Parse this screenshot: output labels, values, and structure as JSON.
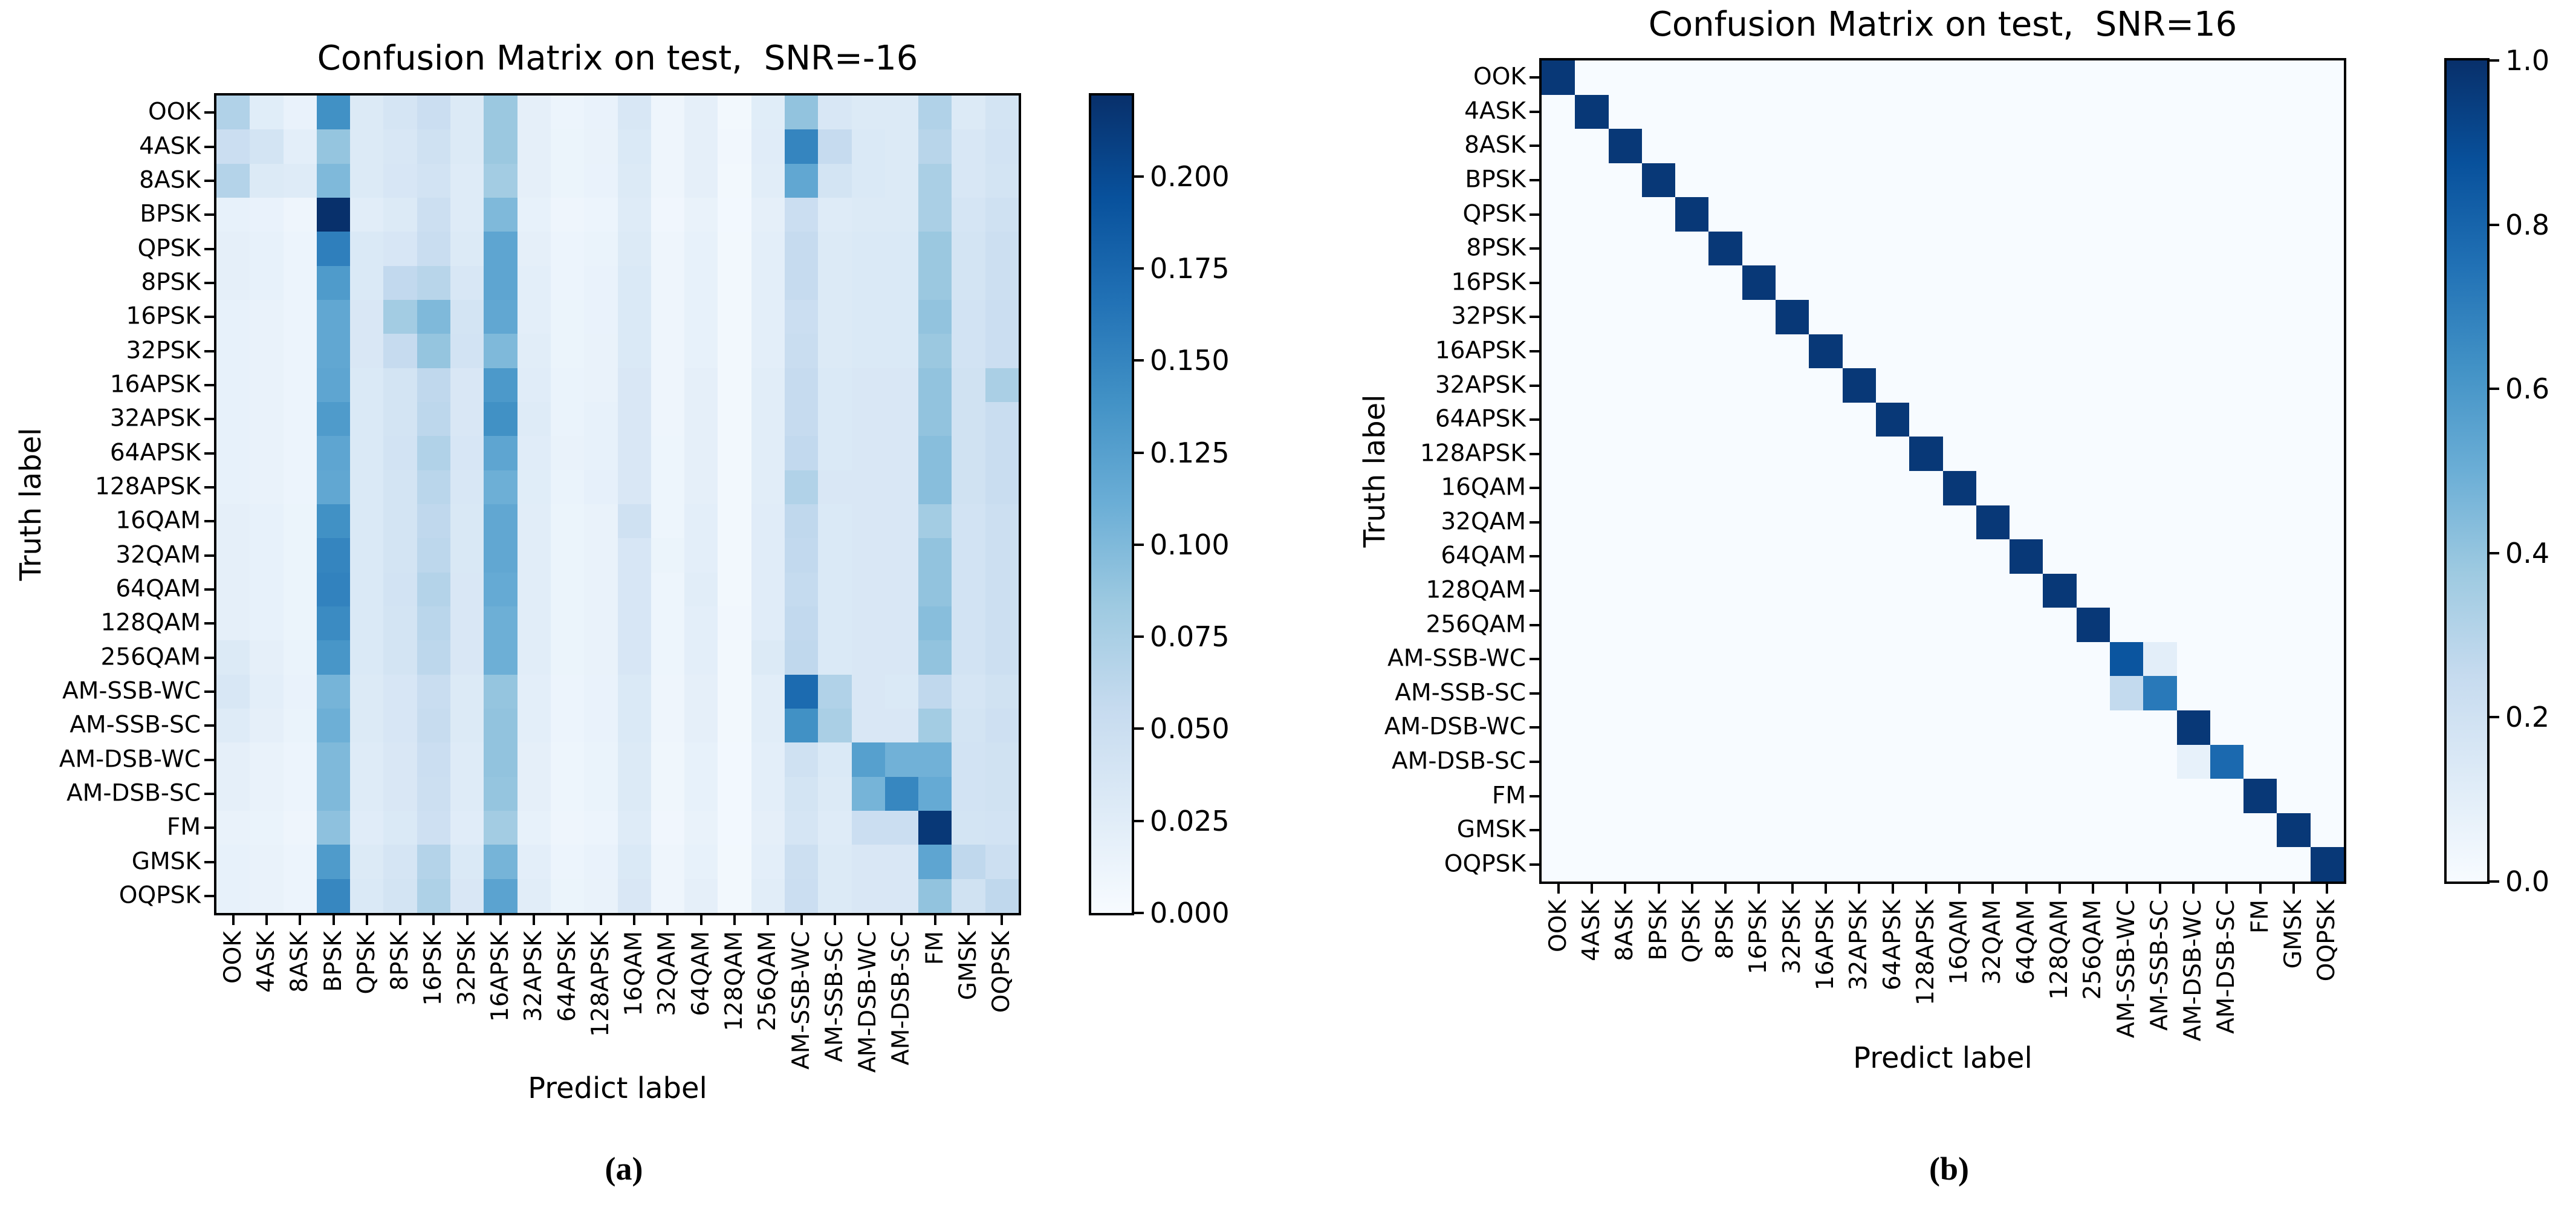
{
  "page": {
    "background": "#ffffff"
  },
  "classes": [
    "OOK",
    "4ASK",
    "8ASK",
    "BPSK",
    "QPSK",
    "8PSK",
    "16PSK",
    "32PSK",
    "16APSK",
    "32APSK",
    "64APSK",
    "128APSK",
    "16QAM",
    "32QAM",
    "64QAM",
    "128QAM",
    "256QAM",
    "AM-SSB-WC",
    "AM-SSB-SC",
    "AM-DSB-WC",
    "AM-DSB-SC",
    "FM",
    "GMSK",
    "OQPSK"
  ],
  "colormap_stops": [
    "#f7fbff",
    "#deebf7",
    "#c6dbef",
    "#9ecae1",
    "#6baed6",
    "#4292c6",
    "#2171b5",
    "#08519c",
    "#08306b"
  ],
  "chart_data": [
    {
      "type": "heatmap",
      "panel": "a",
      "caption": "(a)",
      "title": "Confusion Matrix on test,  SNR=-16",
      "xlabel": "Predict label",
      "ylabel": "Truth label",
      "vmin": 0,
      "vmax": 0.222,
      "legend_position": "right-colorbar",
      "colorbar_ticks": [
        "0.000",
        "0.025",
        "0.050",
        "0.075",
        "0.100",
        "0.125",
        "0.150",
        "0.175",
        "0.200"
      ],
      "matrix": [
        [
          0.07,
          0.025,
          0.015,
          0.14,
          0.03,
          0.038,
          0.05,
          0.03,
          0.085,
          0.02,
          0.012,
          0.015,
          0.035,
          0.01,
          0.02,
          0.006,
          0.025,
          0.09,
          0.035,
          0.03,
          0.03,
          0.07,
          0.03,
          0.04
        ],
        [
          0.05,
          0.04,
          0.022,
          0.088,
          0.03,
          0.035,
          0.045,
          0.03,
          0.085,
          0.02,
          0.013,
          0.016,
          0.032,
          0.01,
          0.02,
          0.007,
          0.026,
          0.15,
          0.055,
          0.032,
          0.03,
          0.065,
          0.035,
          0.042
        ],
        [
          0.068,
          0.03,
          0.028,
          0.1,
          0.03,
          0.036,
          0.042,
          0.028,
          0.08,
          0.02,
          0.013,
          0.015,
          0.03,
          0.01,
          0.02,
          0.006,
          0.024,
          0.118,
          0.04,
          0.032,
          0.03,
          0.075,
          0.035,
          0.04
        ],
        [
          0.018,
          0.015,
          0.01,
          0.222,
          0.024,
          0.03,
          0.048,
          0.028,
          0.1,
          0.018,
          0.01,
          0.012,
          0.028,
          0.008,
          0.016,
          0.005,
          0.02,
          0.05,
          0.028,
          0.03,
          0.03,
          0.075,
          0.038,
          0.045
        ],
        [
          0.02,
          0.018,
          0.012,
          0.155,
          0.032,
          0.036,
          0.052,
          0.03,
          0.12,
          0.02,
          0.012,
          0.014,
          0.03,
          0.01,
          0.018,
          0.006,
          0.022,
          0.055,
          0.03,
          0.032,
          0.032,
          0.085,
          0.04,
          0.048
        ],
        [
          0.02,
          0.018,
          0.012,
          0.13,
          0.032,
          0.058,
          0.065,
          0.035,
          0.12,
          0.022,
          0.012,
          0.015,
          0.032,
          0.01,
          0.018,
          0.006,
          0.022,
          0.055,
          0.03,
          0.032,
          0.032,
          0.085,
          0.04,
          0.048
        ],
        [
          0.018,
          0.016,
          0.012,
          0.118,
          0.034,
          0.08,
          0.1,
          0.04,
          0.118,
          0.022,
          0.013,
          0.015,
          0.032,
          0.01,
          0.018,
          0.006,
          0.022,
          0.05,
          0.03,
          0.032,
          0.032,
          0.09,
          0.042,
          0.05
        ],
        [
          0.018,
          0.016,
          0.012,
          0.118,
          0.034,
          0.055,
          0.088,
          0.042,
          0.1,
          0.024,
          0.013,
          0.016,
          0.032,
          0.01,
          0.018,
          0.006,
          0.022,
          0.052,
          0.03,
          0.032,
          0.032,
          0.085,
          0.042,
          0.05
        ],
        [
          0.018,
          0.016,
          0.012,
          0.12,
          0.032,
          0.04,
          0.06,
          0.034,
          0.132,
          0.026,
          0.014,
          0.016,
          0.034,
          0.01,
          0.02,
          0.006,
          0.024,
          0.055,
          0.032,
          0.034,
          0.034,
          0.09,
          0.044,
          0.075
        ],
        [
          0.018,
          0.016,
          0.012,
          0.13,
          0.032,
          0.04,
          0.062,
          0.034,
          0.14,
          0.028,
          0.014,
          0.018,
          0.034,
          0.01,
          0.02,
          0.006,
          0.024,
          0.055,
          0.032,
          0.034,
          0.034,
          0.09,
          0.044,
          0.052
        ],
        [
          0.018,
          0.016,
          0.012,
          0.12,
          0.032,
          0.042,
          0.07,
          0.036,
          0.12,
          0.026,
          0.016,
          0.018,
          0.034,
          0.011,
          0.02,
          0.006,
          0.024,
          0.058,
          0.032,
          0.034,
          0.034,
          0.095,
          0.044,
          0.052
        ],
        [
          0.018,
          0.016,
          0.012,
          0.118,
          0.032,
          0.04,
          0.064,
          0.035,
          0.11,
          0.025,
          0.014,
          0.019,
          0.034,
          0.011,
          0.02,
          0.006,
          0.024,
          0.07,
          0.034,
          0.034,
          0.034,
          0.095,
          0.044,
          0.052
        ],
        [
          0.02,
          0.018,
          0.013,
          0.14,
          0.032,
          0.04,
          0.06,
          0.033,
          0.118,
          0.024,
          0.013,
          0.016,
          0.045,
          0.011,
          0.022,
          0.006,
          0.026,
          0.06,
          0.032,
          0.034,
          0.034,
          0.08,
          0.042,
          0.048
        ],
        [
          0.02,
          0.018,
          0.013,
          0.15,
          0.032,
          0.04,
          0.062,
          0.033,
          0.118,
          0.024,
          0.013,
          0.016,
          0.036,
          0.013,
          0.022,
          0.006,
          0.026,
          0.058,
          0.032,
          0.034,
          0.034,
          0.09,
          0.042,
          0.048
        ],
        [
          0.02,
          0.018,
          0.013,
          0.152,
          0.032,
          0.042,
          0.068,
          0.034,
          0.115,
          0.024,
          0.013,
          0.016,
          0.036,
          0.011,
          0.024,
          0.006,
          0.026,
          0.056,
          0.032,
          0.034,
          0.034,
          0.09,
          0.042,
          0.048
        ],
        [
          0.02,
          0.018,
          0.013,
          0.145,
          0.032,
          0.04,
          0.064,
          0.034,
          0.11,
          0.024,
          0.013,
          0.016,
          0.036,
          0.011,
          0.022,
          0.007,
          0.026,
          0.058,
          0.032,
          0.034,
          0.034,
          0.095,
          0.042,
          0.048
        ],
        [
          0.03,
          0.02,
          0.014,
          0.135,
          0.032,
          0.04,
          0.062,
          0.034,
          0.11,
          0.024,
          0.013,
          0.016,
          0.036,
          0.011,
          0.022,
          0.006,
          0.03,
          0.06,
          0.032,
          0.034,
          0.034,
          0.09,
          0.042,
          0.048
        ],
        [
          0.035,
          0.022,
          0.015,
          0.105,
          0.03,
          0.036,
          0.052,
          0.03,
          0.088,
          0.022,
          0.012,
          0.015,
          0.032,
          0.01,
          0.02,
          0.006,
          0.024,
          0.172,
          0.07,
          0.034,
          0.032,
          0.06,
          0.038,
          0.044
        ],
        [
          0.028,
          0.02,
          0.014,
          0.11,
          0.03,
          0.036,
          0.054,
          0.03,
          0.09,
          0.022,
          0.012,
          0.015,
          0.032,
          0.01,
          0.02,
          0.006,
          0.024,
          0.14,
          0.075,
          0.034,
          0.034,
          0.08,
          0.04,
          0.046
        ],
        [
          0.02,
          0.016,
          0.012,
          0.1,
          0.028,
          0.034,
          0.05,
          0.028,
          0.09,
          0.02,
          0.011,
          0.014,
          0.03,
          0.009,
          0.018,
          0.005,
          0.022,
          0.045,
          0.032,
          0.125,
          0.108,
          0.108,
          0.042,
          0.044
        ],
        [
          0.02,
          0.016,
          0.012,
          0.1,
          0.028,
          0.034,
          0.048,
          0.028,
          0.088,
          0.02,
          0.011,
          0.014,
          0.03,
          0.009,
          0.018,
          0.005,
          0.022,
          0.04,
          0.03,
          0.105,
          0.148,
          0.115,
          0.042,
          0.044
        ],
        [
          0.016,
          0.014,
          0.01,
          0.092,
          0.026,
          0.032,
          0.046,
          0.026,
          0.08,
          0.018,
          0.01,
          0.012,
          0.028,
          0.008,
          0.016,
          0.005,
          0.02,
          0.038,
          0.028,
          0.05,
          0.05,
          0.215,
          0.04,
          0.042
        ],
        [
          0.018,
          0.016,
          0.012,
          0.13,
          0.03,
          0.038,
          0.068,
          0.032,
          0.105,
          0.022,
          0.012,
          0.015,
          0.032,
          0.01,
          0.018,
          0.006,
          0.022,
          0.048,
          0.03,
          0.034,
          0.034,
          0.12,
          0.06,
          0.048
        ],
        [
          0.018,
          0.016,
          0.012,
          0.148,
          0.032,
          0.04,
          0.072,
          0.034,
          0.122,
          0.024,
          0.013,
          0.016,
          0.034,
          0.01,
          0.02,
          0.006,
          0.024,
          0.05,
          0.03,
          0.034,
          0.034,
          0.09,
          0.044,
          0.06
        ]
      ]
    },
    {
      "type": "heatmap",
      "panel": "b",
      "caption": "(b)",
      "title": "Confusion Matrix on test,  SNR=16",
      "xlabel": "Predict label",
      "ylabel": "Truth label",
      "vmin": 0,
      "vmax": 1.0,
      "legend_position": "right-colorbar",
      "colorbar_ticks": [
        "0.0",
        "0.2",
        "0.4",
        "0.6",
        "0.8",
        "1.0"
      ],
      "diag": [
        0.97,
        0.97,
        0.97,
        0.97,
        0.97,
        0.97,
        0.97,
        0.97,
        0.97,
        0.97,
        0.97,
        0.97,
        0.97,
        0.97,
        0.97,
        0.97,
        0.97,
        0.86,
        0.72,
        0.97,
        0.78,
        0.97,
        0.97,
        0.97
      ],
      "off_diag_cells": [
        [
          17,
          18,
          0.1
        ],
        [
          18,
          17,
          0.26
        ],
        [
          20,
          19,
          0.08
        ]
      ]
    }
  ]
}
